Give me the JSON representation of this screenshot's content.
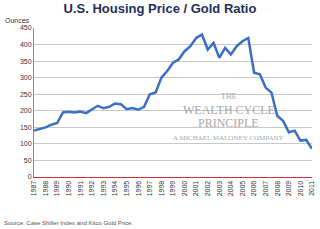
{
  "chart_data": {
    "type": "line",
    "title": "U.S. Housing Price / Gold Ratio",
    "ylabel": "Ounces",
    "source": "Source: Case Shiller Index and Kitco Gold Price.",
    "annotations": [
      "THE",
      "WEALTH CYCLE",
      "PRINCIPLE",
      "A MICHAEL MALONEY COMPANY"
    ],
    "x": [
      1987,
      1987.5,
      1988,
      1988.5,
      1989,
      1989.5,
      1990,
      1990.5,
      1991,
      1991.5,
      1992,
      1992.5,
      1993,
      1993.5,
      1994,
      1994.5,
      1995,
      1995.5,
      1996,
      1996.5,
      1997,
      1997.5,
      1998,
      1998.5,
      1999,
      1999.5,
      2000,
      2000.5,
      2001,
      2001.5,
      2002,
      2002.5,
      2003,
      2003.5,
      2004,
      2004.5,
      2005,
      2005.5,
      2006,
      2006.5,
      2007,
      2007.5,
      2008,
      2008.5,
      2009,
      2009.5,
      2010,
      2010.5,
      2011
    ],
    "values": [
      140,
      145,
      150,
      158,
      163,
      195,
      197,
      195,
      198,
      193,
      205,
      215,
      208,
      212,
      222,
      220,
      205,
      208,
      203,
      212,
      250,
      255,
      300,
      320,
      345,
      355,
      380,
      395,
      420,
      430,
      385,
      405,
      360,
      390,
      370,
      395,
      410,
      420,
      315,
      310,
      270,
      255,
      185,
      170,
      135,
      140,
      110,
      112,
      85
    ],
    "color": "#3b6fc6",
    "xlim": [
      1987,
      2011
    ],
    "xticks": [
      1987,
      1988,
      1989,
      1990,
      1991,
      1992,
      1993,
      1994,
      1995,
      1996,
      1997,
      1998,
      1999,
      2000,
      2001,
      2002,
      2003,
      2004,
      2005,
      2006,
      2007,
      2008,
      2009,
      2010,
      2011
    ],
    "ylim": [
      0,
      450
    ],
    "yticks": [
      0,
      50,
      100,
      150,
      200,
      250,
      300,
      350,
      400,
      450
    ],
    "grid": true
  }
}
